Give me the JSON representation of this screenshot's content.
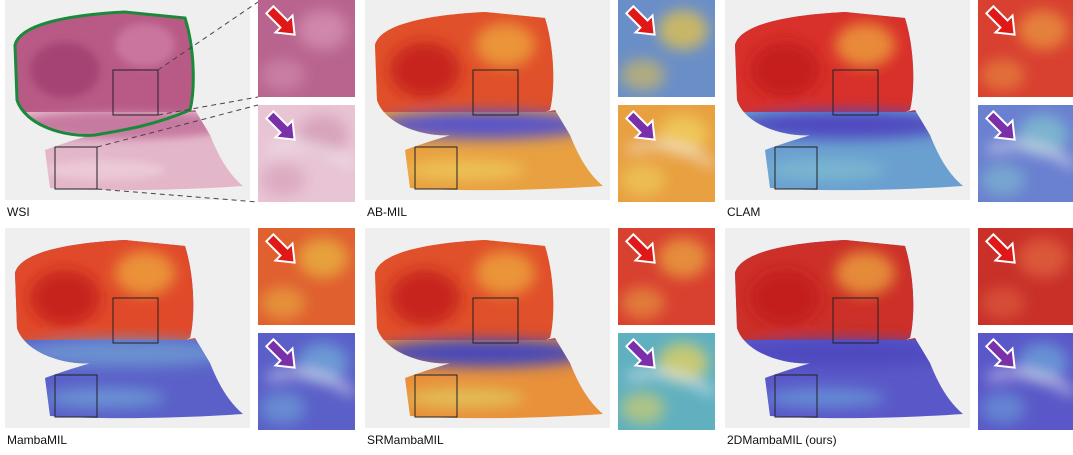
{
  "panels": [
    {
      "label": "WSI"
    },
    {
      "label": "AB-MIL"
    },
    {
      "label": "CLAM"
    },
    {
      "label": "MambaMIL"
    },
    {
      "label": "SRMambaMIL"
    },
    {
      "label": "2DMambaMIL (ours)"
    }
  ]
}
